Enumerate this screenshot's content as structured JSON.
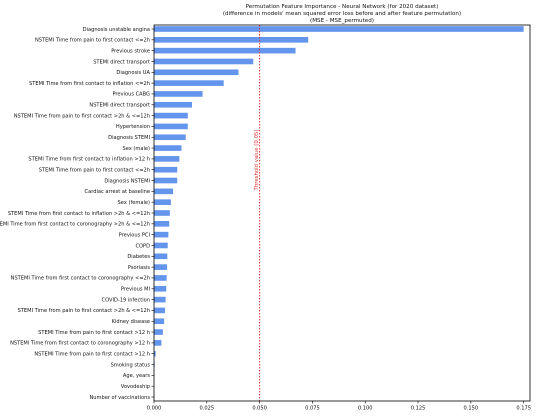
{
  "chart_data": {
    "type": "bar",
    "orientation": "horizontal",
    "title": "Permutation Feature Importance - Neural Network (for 2020 dataset)",
    "subtitle": "(difference in models' mean squared error loss before and after feature permutation)",
    "subtitle2": "(MSE - MSE_permuted)",
    "xlabel": "",
    "ylabel": "",
    "xlim": [
      0,
      0.178
    ],
    "xticks": [
      0.0,
      0.025,
      0.05,
      0.075,
      0.1,
      0.125,
      0.15,
      0.175
    ],
    "xtick_labels": [
      "0.000",
      "0.025",
      "0.050",
      "0.075",
      "0.100",
      "0.125",
      "0.150",
      "0.175"
    ],
    "bar_color": "#6495ed",
    "grid": false,
    "reference_line": {
      "value": 0.05,
      "label": "Threshold value (0.05)",
      "color": "#e3342f",
      "style": "dotted"
    },
    "categories": [
      "Diagnosis unstable angina",
      "NSTEMI Time from pain to first contact <=2h",
      "Previous stroke",
      "STEMI direct transport",
      "Diagnosis UA",
      "STEMI Time from first contact to inflation <=2h",
      "Previous CABG",
      "NSTEMI direct transport",
      "NSTEMI Time from pain to first contact >2h & <=12h",
      "Hypertension",
      "Diagnosis STEMI",
      "Sex (male)",
      "STEMI Time from first contact to inflation >12 h",
      "STEMI Time from pain to first contact <=2h",
      "Diagnosis NSTEMI",
      "Cardiac arrest at baseline",
      "Sex (female)",
      "STEMI Time from first contact to inflation >2h & <=12h",
      "NSTEMI Time from first contact to coronography >2h & <=12h",
      "Previous PCI",
      "COPD",
      "Diabetes",
      "Psoriasis",
      "NSTEMI Time from first contact to coronography <=2h",
      "Previous MI",
      "COVID-19 infection",
      "STEMI Time from pain to first contact >2h & <=12h",
      "Kidney disease",
      "STEMI Time from pain to first contact >12 h",
      "NSTEMI Time from first contact to coronography >12 h",
      "NSTEMI Time from pain to first contact >12 h",
      "Smoking status",
      "Age, years",
      "Vovodeship",
      "Number of vaccinations"
    ],
    "values": [
      0.175,
      0.073,
      0.067,
      0.047,
      0.04,
      0.033,
      0.023,
      0.018,
      0.016,
      0.016,
      0.015,
      0.013,
      0.012,
      0.011,
      0.011,
      0.009,
      0.008,
      0.0075,
      0.0072,
      0.0068,
      0.0065,
      0.0063,
      0.0062,
      0.006,
      0.0058,
      0.0055,
      0.0052,
      0.0048,
      0.0042,
      0.0035,
      0.0008,
      0.0003,
      0.0001,
      0.0,
      0.0
    ]
  }
}
